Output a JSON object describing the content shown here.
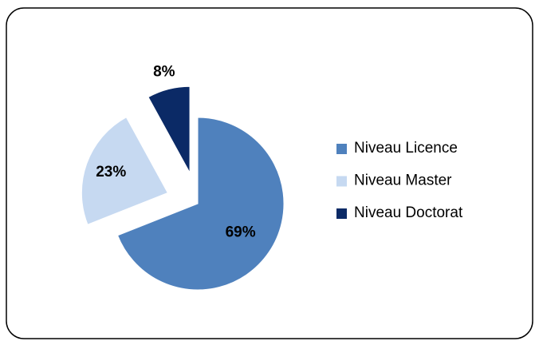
{
  "chart_data": {
    "type": "pie",
    "categories": [
      "Niveau Licence",
      "Niveau Master",
      "Niveau Doctorat"
    ],
    "values": [
      69,
      23,
      8
    ],
    "value_labels": [
      "69%",
      "23%",
      "8%"
    ],
    "colors": [
      "#4f81bd",
      "#c6d9f1",
      "#0b2a66"
    ],
    "legend": "right"
  }
}
